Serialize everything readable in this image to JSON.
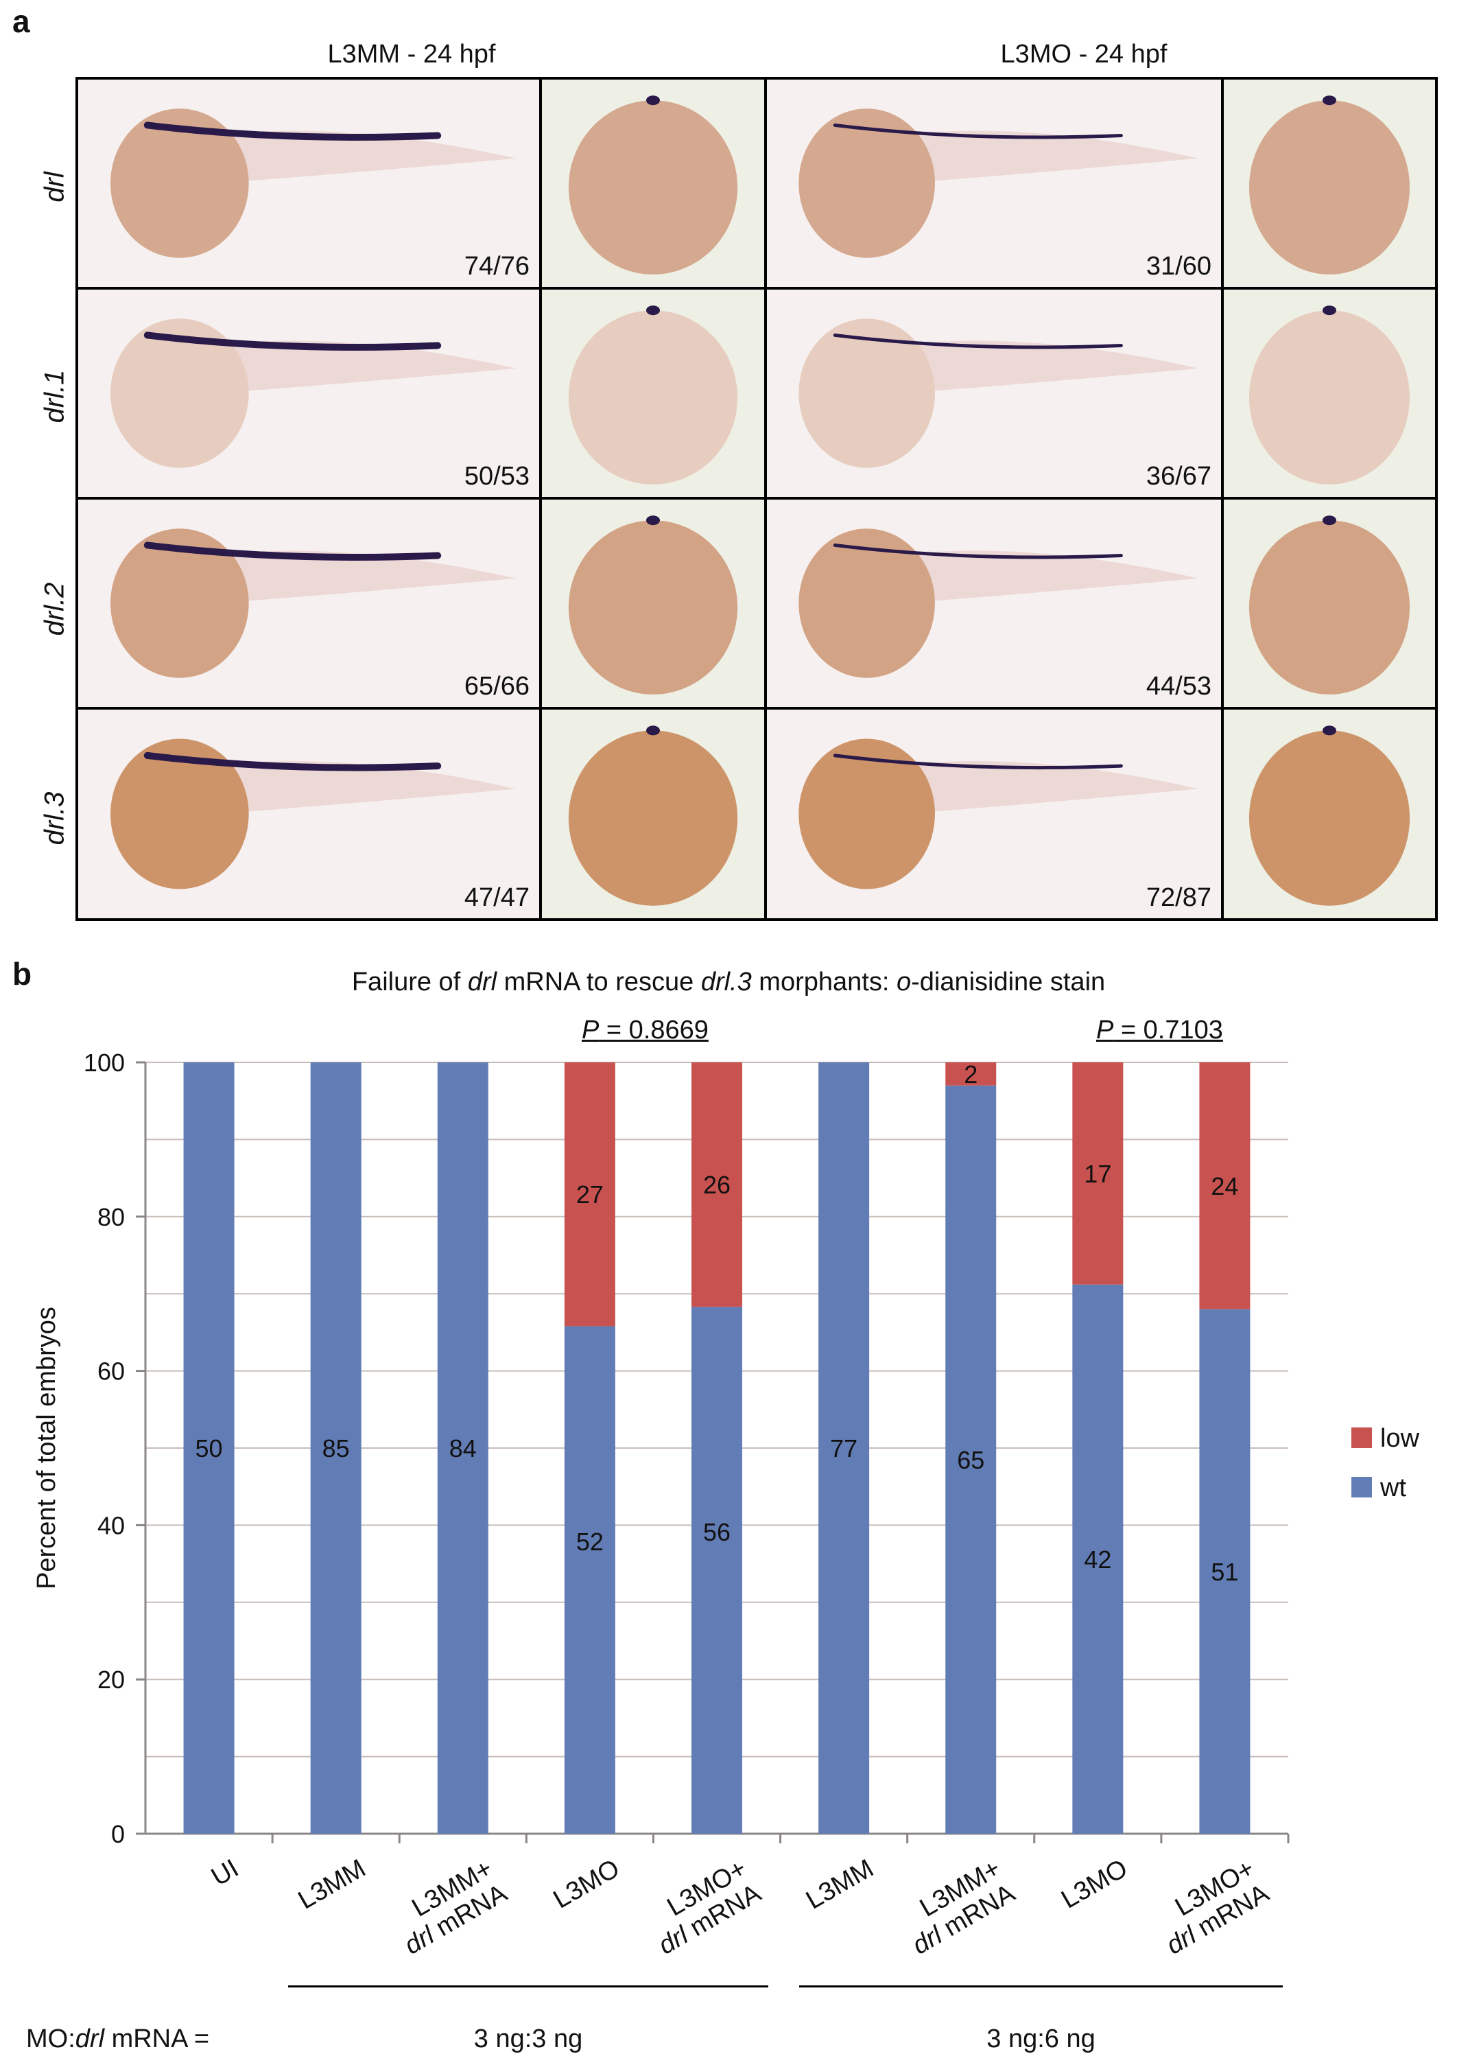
{
  "panel_a": {
    "letter": "a",
    "columns": [
      "L3MM - 24 hpf",
      "L3MO - 24 hpf"
    ],
    "rows": [
      {
        "gene": "drl",
        "mm_count": "74/76",
        "mo_count": "31/60"
      },
      {
        "gene": "drl.1",
        "mm_count": "50/53",
        "mo_count": "36/67"
      },
      {
        "gene": "drl.2",
        "mm_count": "65/66",
        "mo_count": "44/53"
      },
      {
        "gene": "drl.3",
        "mm_count": "47/47",
        "mo_count": "72/87"
      }
    ]
  },
  "panel_b": {
    "letter": "b",
    "title_parts": [
      "Failure of ",
      "drl",
      " mRNA to rescue ",
      "drl.3",
      " morphants: ",
      "o",
      "-dianisidine stain"
    ],
    "p_labels": [
      {
        "p": "P",
        "value": " = 0.8669"
      },
      {
        "p": "P",
        "value": " = 0.7103"
      }
    ],
    "group_footer_label": "MO:drl mRNA =",
    "group_footer_parts": [
      "MO:",
      "drl",
      " mRNA ="
    ],
    "groups": [
      "3 ng:3 ng",
      "3 ng:6 ng"
    ]
  },
  "chart_data": {
    "type": "bar",
    "stacked": true,
    "ylabel": "Percent of total embryos",
    "ylim": [
      0,
      100
    ],
    "yticks": [
      0,
      20,
      40,
      60,
      80,
      100
    ],
    "grid": true,
    "legend_position": "right",
    "categories": [
      {
        "line1": "UI",
        "line2": ""
      },
      {
        "line1": "L3MM",
        "line2": ""
      },
      {
        "line1": "L3MM+",
        "line2": "drl mRNA"
      },
      {
        "line1": "L3MO",
        "line2": ""
      },
      {
        "line1": "L3MO+",
        "line2": "drl mRNA"
      },
      {
        "line1": "L3MM",
        "line2": ""
      },
      {
        "line1": "L3MM+",
        "line2": "drl mRNA"
      },
      {
        "line1": "L3MO",
        "line2": ""
      },
      {
        "line1": "L3MO+",
        "line2": "drl mRNA"
      }
    ],
    "series": [
      {
        "name": "wt",
        "color": "#627db5",
        "percent": [
          100,
          100,
          100,
          65.8,
          68.3,
          100,
          97.0,
          71.2,
          68.0
        ],
        "counts": [
          50,
          85,
          84,
          52,
          56,
          77,
          65,
          42,
          51
        ]
      },
      {
        "name": "low",
        "color": "#c85250",
        "percent": [
          0,
          0,
          0,
          34.2,
          31.7,
          0,
          3.0,
          28.8,
          32.0
        ],
        "counts": [
          null,
          null,
          null,
          27,
          26,
          null,
          2,
          17,
          24
        ]
      }
    ],
    "legend": [
      "low",
      "wt"
    ]
  }
}
